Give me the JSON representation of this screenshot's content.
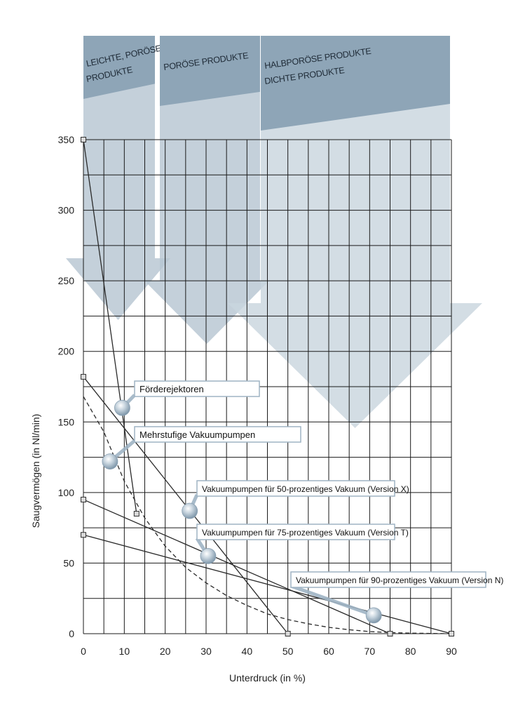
{
  "chart_data": {
    "type": "line",
    "xlabel": "Unterdruck (in %)",
    "ylabel": "Saugvermögen (in Nl/min)",
    "xlim": [
      0,
      90
    ],
    "ylim": [
      0,
      350
    ],
    "xticks": [
      0,
      10,
      20,
      30,
      40,
      50,
      60,
      70,
      80,
      90
    ],
    "yticks": [
      0,
      50,
      100,
      150,
      200,
      250,
      300,
      350
    ],
    "xtick_labels": [
      "0",
      "10",
      "20",
      "30",
      "40",
      "50",
      "60",
      "70",
      "80",
      "90"
    ],
    "ytick_labels": [
      "0",
      "50",
      "100",
      "150",
      "200",
      "250",
      "300",
      "350"
    ],
    "grid": true,
    "regions": [
      {
        "lines": [
          "LEICHTE, PORÖSE",
          "PRODUKTE"
        ],
        "x_range": [
          0,
          17.5
        ],
        "color_dark": "#8ea5b7",
        "color_light": "#b7c6d2"
      },
      {
        "lines": [
          "PORÖSE PRODUKTE"
        ],
        "x_range": [
          18.5,
          43
        ],
        "color_dark": "#8ea5b7",
        "color_light": "#b7c6d2"
      },
      {
        "lines": [
          "HALBPORÖSE PRODUKTE",
          "DICHTE PRODUKTE"
        ],
        "x_range": [
          43,
          90
        ],
        "color_dark": "#8ea5b7",
        "color_light": "#c9d5de"
      }
    ],
    "series": [
      {
        "name": "Förderejektoren",
        "style": "solid",
        "marker": "square",
        "points": [
          [
            0,
            350
          ],
          [
            13,
            85
          ]
        ],
        "label_anchor": [
          9.5,
          160
        ]
      },
      {
        "name": "Mehrstufige Vakuumpumpen",
        "style": "dashed",
        "marker": "none",
        "points": [
          [
            0,
            168
          ],
          [
            5,
            143
          ],
          [
            10,
            108
          ],
          [
            15,
            82
          ],
          [
            20,
            62
          ],
          [
            25,
            47
          ],
          [
            30,
            36
          ],
          [
            35,
            27
          ],
          [
            40,
            20
          ],
          [
            45,
            14
          ],
          [
            50,
            10
          ],
          [
            55,
            7
          ],
          [
            60,
            4.5
          ],
          [
            65,
            2.8
          ],
          [
            70,
            1.5
          ],
          [
            75,
            0.8
          ],
          [
            80,
            0.4
          ],
          [
            85,
            0.2
          ],
          [
            90,
            0
          ]
        ],
        "label_anchor": [
          6.5,
          122
        ]
      },
      {
        "name": "Vakuumpumpen für 50-prozentiges Vakuum (Version X)",
        "style": "solid",
        "marker": "square",
        "points": [
          [
            0,
            182
          ],
          [
            50,
            0
          ]
        ],
        "label_anchor": [
          26,
          87
        ]
      },
      {
        "name": "Vakuumpumpen für 75-prozentiges Vakuum (Version T)",
        "style": "solid",
        "marker": "square",
        "points": [
          [
            0,
            95
          ],
          [
            75,
            0
          ]
        ],
        "label_anchor": [
          30.5,
          55
        ]
      },
      {
        "name": "Vakuumpumpen für 90-prozentiges Vakuum (Version N)",
        "style": "solid",
        "marker": "square",
        "points": [
          [
            0,
            70
          ],
          [
            90,
            0
          ]
        ],
        "label_anchor": [
          71,
          13
        ]
      }
    ],
    "colors": {
      "grid": "#1a1a1a",
      "line": "#2a2a2a",
      "ball": "#9fb4c4"
    }
  }
}
